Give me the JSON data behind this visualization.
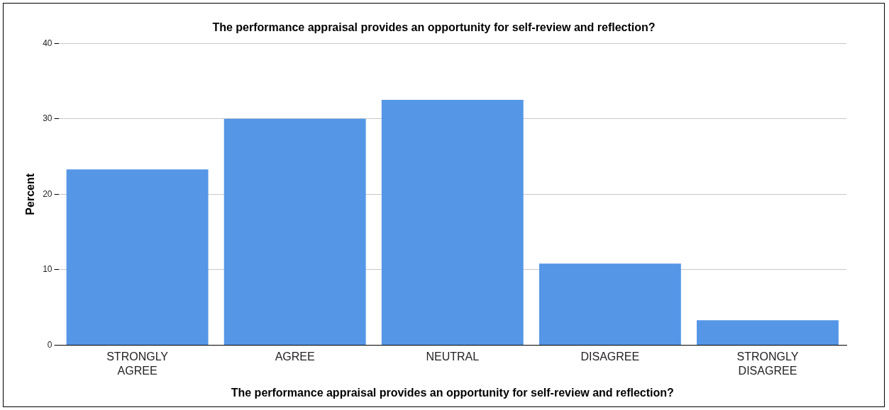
{
  "chart_data": {
    "type": "bar",
    "title": "The performance appraisal provides an opportunity for self-review and reflection?",
    "xlabel": "The performance appraisal provides an opportunity for self-review and reflection?",
    "ylabel": "Percent",
    "categories": [
      "STRONGLY AGREE",
      "AGREE",
      "NEUTRAL",
      "DISAGREE",
      "STRONGLY DISAGREE"
    ],
    "values": [
      23.3,
      30.0,
      32.5,
      10.8,
      3.3
    ],
    "color": "#5596e6",
    "ylim": [
      0,
      40
    ],
    "yticks": [
      0,
      10,
      20,
      30,
      40
    ],
    "grid": "y"
  }
}
